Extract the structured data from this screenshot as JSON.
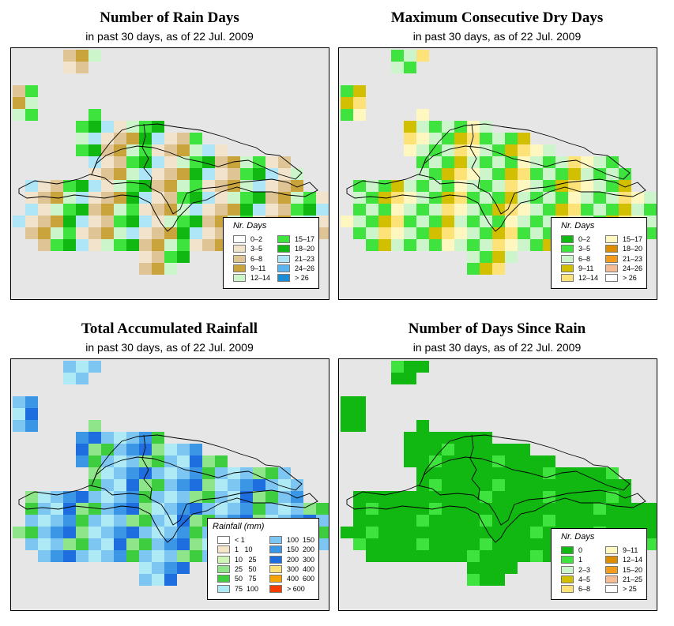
{
  "panels": [
    {
      "title": "Number of Rain Days",
      "subtitle": "in past 30 days, as of  22 Jul. 2009",
      "legend": {
        "title": "Nr. Days",
        "items": [
          {
            "label": "0–2",
            "color": "#ffffff"
          },
          {
            "label": "3–5",
            "color": "#f2e4cc"
          },
          {
            "label": "6–8",
            "color": "#dfc496"
          },
          {
            "label": "9–11",
            "color": "#c9a43c"
          },
          {
            "label": "12–14",
            "color": "#ccf5cc"
          },
          {
            "label": "15–17",
            "color": "#3ee33e"
          },
          {
            "label": "18–20",
            "color": "#11b811"
          },
          {
            "label": "21–23",
            "color": "#aee6f7"
          },
          {
            "label": "24–26",
            "color": "#5ab4ee"
          },
          {
            "label": "> 26",
            "color": "#1e8cd2"
          }
        ]
      }
    },
    {
      "title": "Maximum Consecutive Dry Days",
      "subtitle": "in past 30 days, as of  22 Jul. 2009",
      "legend": {
        "title": "Nr. Days",
        "items": [
          {
            "label": "0–2",
            "color": "#11b811"
          },
          {
            "label": "3–5",
            "color": "#3ee33e"
          },
          {
            "label": "6–8",
            "color": "#ccf5cc"
          },
          {
            "label": "9–11",
            "color": "#d2c000"
          },
          {
            "label": "12–14",
            "color": "#fce277"
          },
          {
            "label": "15–17",
            "color": "#fef7c0"
          },
          {
            "label": "18–20",
            "color": "#de8c00"
          },
          {
            "label": "21–23",
            "color": "#f39c1c"
          },
          {
            "label": "24–26",
            "color": "#f6bc96"
          },
          {
            "label": "> 26",
            "color": "#ffffff"
          }
        ]
      }
    },
    {
      "title": "Total Accumulated Rainfall",
      "subtitle": "in past 30 days, as of  22 Jul. 2009",
      "legend": {
        "title": "Rainfall (mm)",
        "items": [
          {
            "label": "< 1",
            "color": "#ffffff"
          },
          {
            "label": "1   10",
            "color": "#f6e6c8"
          },
          {
            "label": "10   25",
            "color": "#cef5b4"
          },
          {
            "label": "25   50",
            "color": "#8ee58a"
          },
          {
            "label": "50   75",
            "color": "#3ecd3e"
          },
          {
            "label": "75  100",
            "color": "#aeeaf6"
          },
          {
            "label": "100  150",
            "color": "#7ec6f2"
          },
          {
            "label": "150  200",
            "color": "#3c96e6"
          },
          {
            "label": "200  300",
            "color": "#1e6ee0"
          },
          {
            "label": "300  400",
            "color": "#f8e07a"
          },
          {
            "label": "400  600",
            "color": "#f6a200"
          },
          {
            "label": "> 600",
            "color": "#f23c00"
          }
        ]
      }
    },
    {
      "title": "Number of Days Since Rain",
      "subtitle": "in past 30 days, as of  22 Jul. 2009",
      "legend": {
        "title": "Nr. Days",
        "items": [
          {
            "label": "0",
            "color": "#11b811"
          },
          {
            "label": "1",
            "color": "#3ee33e"
          },
          {
            "label": "2–3",
            "color": "#ccf5cc"
          },
          {
            "label": "4–5",
            "color": "#d2c000"
          },
          {
            "label": "6–8",
            "color": "#fce277"
          },
          {
            "label": "9–11",
            "color": "#fef7c0"
          },
          {
            "label": "12–14",
            "color": "#de8c00"
          },
          {
            "label": "15–20",
            "color": "#f39c1c"
          },
          {
            "label": "21–25",
            "color": "#f6bc96"
          },
          {
            "label": "> 25",
            "color": "#ffffff"
          }
        ]
      }
    }
  ]
}
